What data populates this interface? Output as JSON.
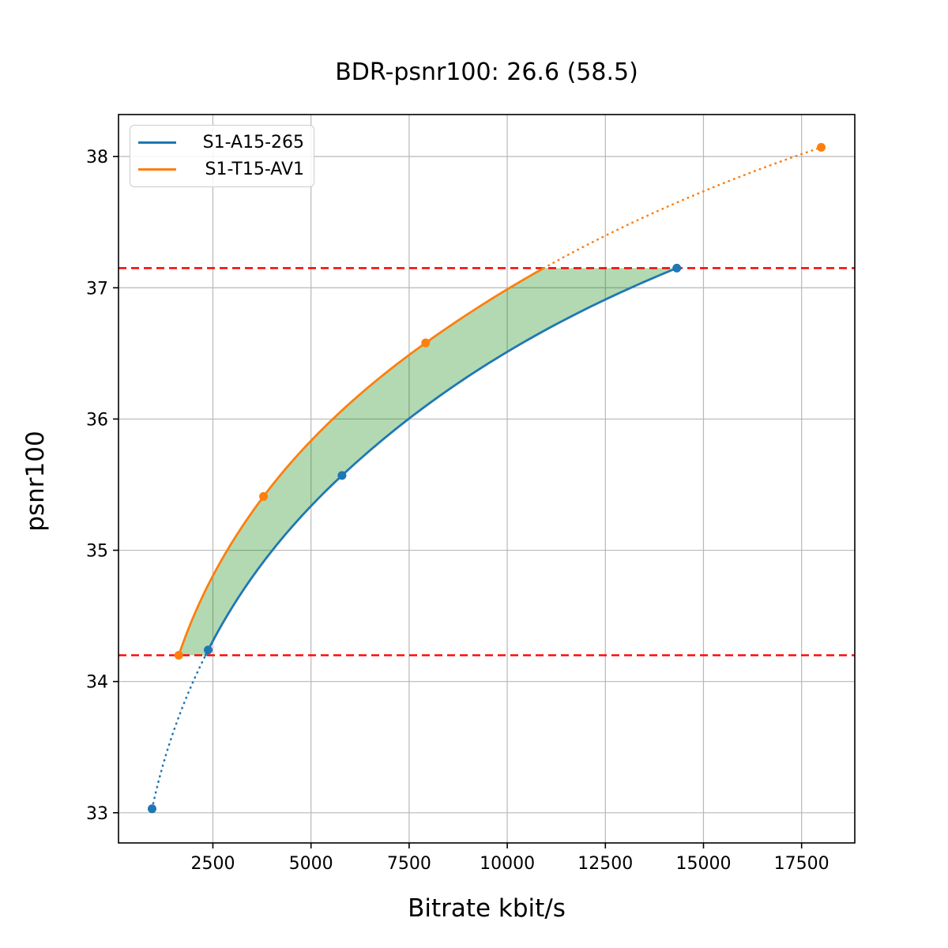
{
  "figure": {
    "title": "BDR-psnr100: 26.6 (58.5)"
  },
  "chart_data": {
    "type": "line",
    "title": "BDR-psnr100: 26.6 (58.5)",
    "xlabel": "Bitrate kbit/s",
    "ylabel": "psnr100",
    "xlim": [
      95,
      18855
    ],
    "ylim": [
      32.77,
      38.32
    ],
    "xticks": [
      2500,
      5000,
      7500,
      10000,
      12500,
      15000,
      17500
    ],
    "yticks": [
      33,
      34,
      35,
      36,
      37,
      38
    ],
    "grid": true,
    "grid_color": "#b8b8b8",
    "legend": {
      "position": "upper-left",
      "entries": [
        "S1-A15-265",
        "S1-T15-AV1"
      ]
    },
    "series": [
      {
        "name": "S1-A15-265",
        "color": "#1f77b4",
        "x": [
          950,
          2380,
          5790,
          14320
        ],
        "y": [
          33.03,
          34.24,
          35.57,
          37.15
        ]
      },
      {
        "name": "S1-T15-AV1",
        "color": "#ff7f0e",
        "x": [
          1630,
          3790,
          7920,
          18000
        ],
        "y": [
          34.2,
          35.41,
          36.58,
          38.07
        ]
      }
    ],
    "hlines": [
      {
        "y": 34.2,
        "color": "#ff0000",
        "style": "dashed"
      },
      {
        "y": 37.15,
        "color": "#ff0000",
        "style": "dashed"
      }
    ],
    "overlap_interval": [
      34.2,
      37.15
    ],
    "fill_between": {
      "color": "#008000",
      "opacity": 0.3
    },
    "line_style_outside_overlap": "dotted",
    "interpolation": "monotone-cubic-log-x"
  }
}
